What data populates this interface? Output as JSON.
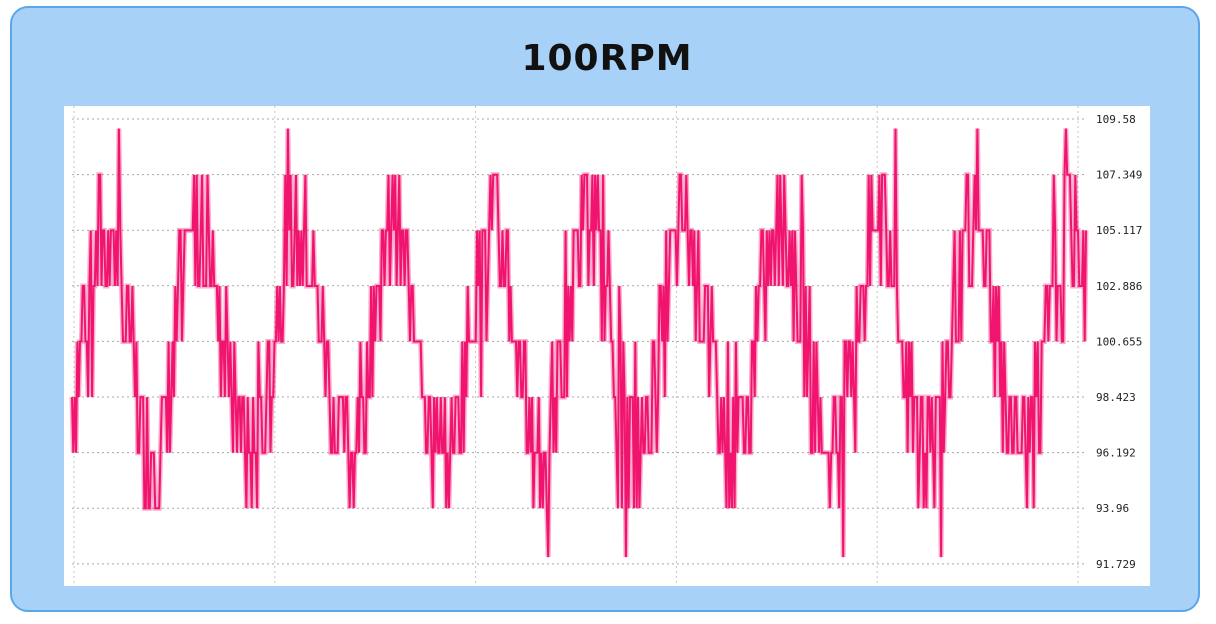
{
  "chart_data": {
    "type": "line",
    "title": "100RPM",
    "xlabel": "",
    "ylabel": "",
    "y_axis_position": "right",
    "ylim": [
      91.0,
      109.7
    ],
    "yticks": [
      91.729,
      93.96,
      96.192,
      98.423,
      100.655,
      102.886,
      105.117,
      107.349,
      109.58
    ],
    "ytick_labels": [
      "91.729",
      "93.96",
      "96.192",
      "98.423",
      "100.655",
      "102.886",
      "105.117",
      "107.349",
      "109.58"
    ],
    "grid": true,
    "legend": false,
    "color": "#f0146e",
    "series": [
      {
        "cycles": 10.5,
        "center": 100.65,
        "amplitude": 4.5,
        "points_per_cycle": 72,
        "min": 92.0,
        "max": 109.2
      }
    ]
  },
  "colors": {
    "background": "#a8d1f7",
    "border": "#5aa6ea",
    "plot_background": "#ffffff",
    "line": "#f0146e"
  }
}
